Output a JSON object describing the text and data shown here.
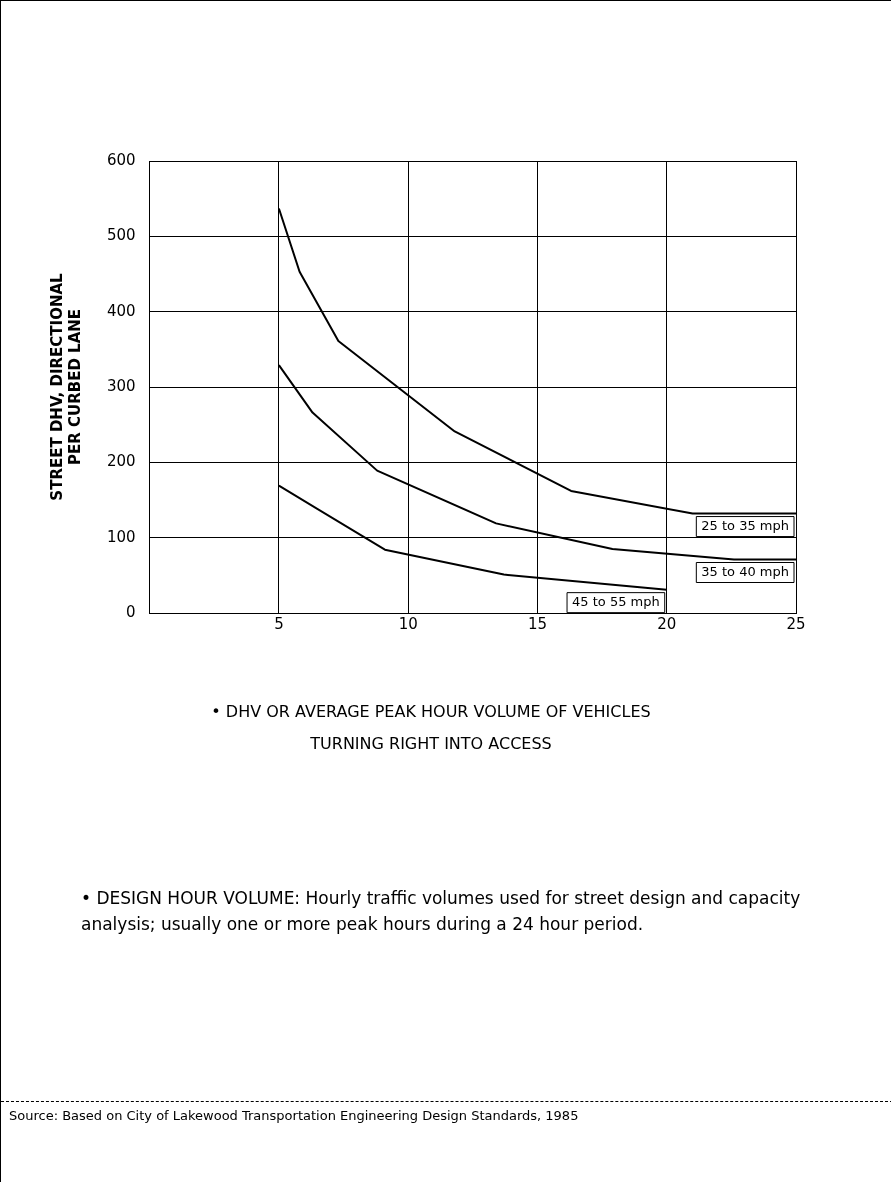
{
  "chart_data": {
    "type": "line",
    "ylabel": "STREET DHV, DIRECTIONAL\nPER CURBED LANE",
    "xlabel": "• DHV OR AVERAGE PEAK HOUR VOLUME OF VEHICLES\nTURNING RIGHT INTO ACCESS",
    "xlim": [
      0,
      25
    ],
    "xticks": [
      5,
      10,
      15,
      20,
      25
    ],
    "ylim": [
      0,
      600
    ],
    "yticks": [
      0,
      100,
      200,
      300,
      400,
      500,
      600
    ],
    "grid": true,
    "legend": false,
    "marker": "none",
    "line_style": "solid",
    "series": [
      {
        "name": "25 to 35 mph",
        "color": "#000000",
        "x": [
          5,
          5.8,
          7.3,
          11.8,
          16.3,
          21,
          25
        ],
        "values": [
          537,
          453,
          361,
          241,
          162,
          132,
          132
        ]
      },
      {
        "name": "35 to 40 mph",
        "color": "#000000",
        "x": [
          5,
          6.3,
          8.8,
          13.4,
          17.9,
          22.6,
          25
        ],
        "values": [
          329,
          266,
          189,
          119,
          85,
          71,
          71
        ]
      },
      {
        "name": "45 to 55 mph",
        "color": "#000000",
        "x": [
          5,
          9.1,
          13.7,
          20
        ],
        "values": [
          169,
          84,
          51,
          31
        ]
      }
    ],
    "annotations": [
      "• DESIGN HOUR VOLUME: Hourly traffic volumes used for street design and capacity analysis; usually one or more peak hours during a 24 hour period.",
      "Source: Based on City of Lakewood Transportation Engineering Design Standards, 1985"
    ]
  }
}
